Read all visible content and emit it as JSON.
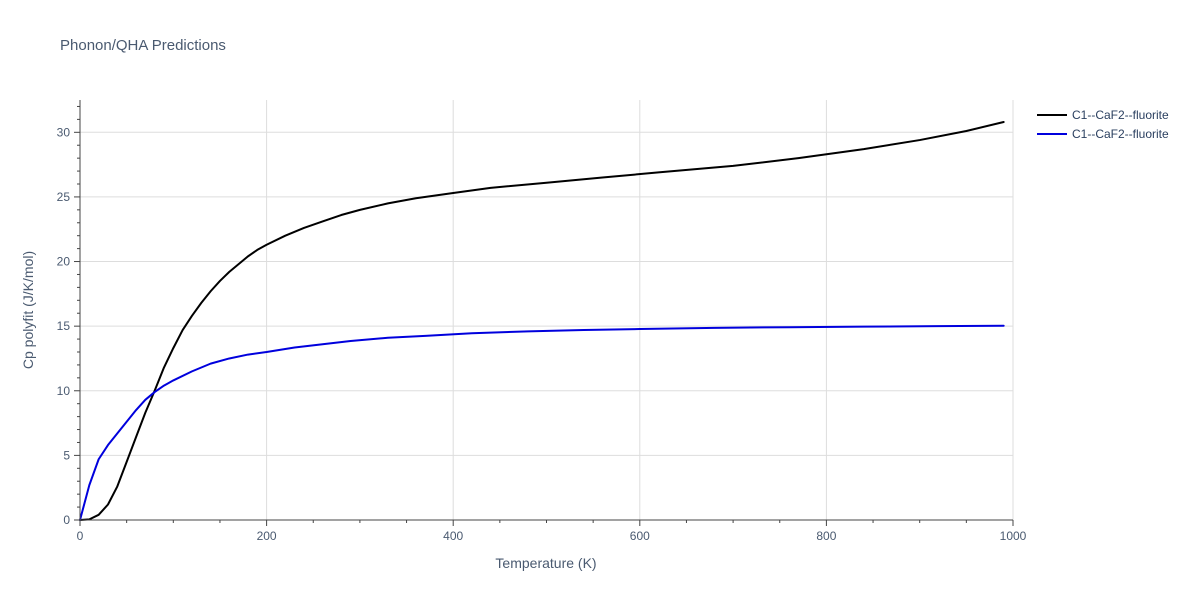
{
  "chart_data": {
    "type": "line",
    "title": "Phonon/QHA Predictions",
    "xlabel": "Temperature (K)",
    "ylabel": "Cp polyfit (J/K/mol)",
    "xlim": [
      0,
      1000
    ],
    "ylim": [
      0,
      32.5
    ],
    "x_ticks": [
      0,
      200,
      400,
      600,
      800,
      1000
    ],
    "y_ticks": [
      0,
      5,
      10,
      15,
      20,
      25,
      30
    ],
    "x_tick_labels": [
      "0",
      "200",
      "400",
      "600",
      "800",
      "1000"
    ],
    "y_tick_labels": [
      "0",
      "5",
      "10",
      "15",
      "20",
      "25",
      "30"
    ],
    "grid": true,
    "legend_position": "top-right",
    "series": [
      {
        "name": "C1--CaF2--fluorite",
        "color": "#000000",
        "x": [
          0,
          10,
          20,
          30,
          40,
          50,
          60,
          70,
          80,
          90,
          100,
          110,
          120,
          130,
          140,
          150,
          160,
          170,
          180,
          190,
          200,
          220,
          240,
          260,
          280,
          300,
          330,
          360,
          400,
          440,
          500,
          560,
          620,
          700,
          770,
          840,
          900,
          950,
          990
        ],
        "y": [
          0,
          0.05,
          0.4,
          1.2,
          2.6,
          4.5,
          6.4,
          8.3,
          10.0,
          11.8,
          13.3,
          14.7,
          15.8,
          16.8,
          17.7,
          18.5,
          19.2,
          19.8,
          20.4,
          20.9,
          21.3,
          22.0,
          22.6,
          23.1,
          23.6,
          24.0,
          24.5,
          24.9,
          25.3,
          25.7,
          26.1,
          26.5,
          26.9,
          27.4,
          28.0,
          28.7,
          29.4,
          30.1,
          30.8
        ]
      },
      {
        "name": "C1--CaF2--fluorite",
        "color": "#0000dd",
        "x": [
          0,
          10,
          20,
          30,
          40,
          50,
          60,
          70,
          80,
          90,
          100,
          120,
          140,
          160,
          180,
          200,
          230,
          260,
          290,
          330,
          370,
          420,
          480,
          540,
          600,
          680,
          760,
          840,
          920,
          990
        ],
        "y": [
          0,
          2.7,
          4.7,
          5.8,
          6.7,
          7.6,
          8.5,
          9.3,
          9.9,
          10.4,
          10.8,
          11.5,
          12.1,
          12.5,
          12.8,
          13.0,
          13.35,
          13.6,
          13.85,
          14.1,
          14.25,
          14.45,
          14.6,
          14.7,
          14.78,
          14.87,
          14.92,
          14.96,
          15.0,
          15.03
        ]
      }
    ]
  }
}
